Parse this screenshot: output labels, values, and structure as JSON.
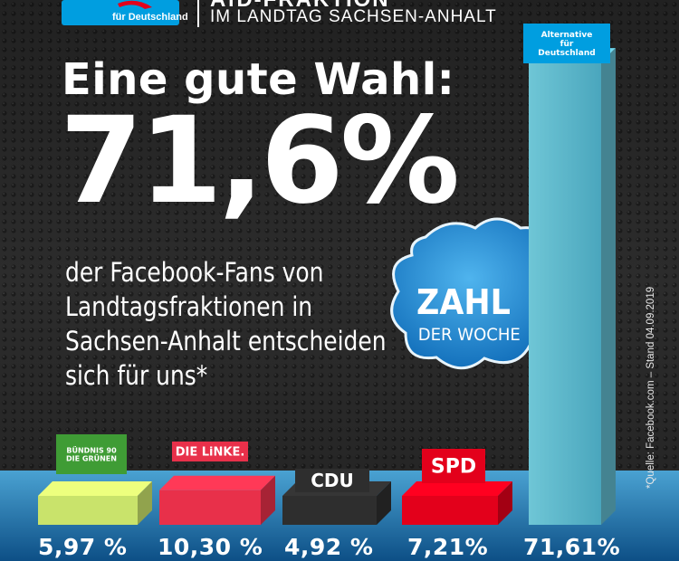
{
  "header": {
    "logo_text": "für Deutschland",
    "title": "AfD-FRAKTION",
    "subtitle": "IM LANDTAG SACHSEN-ANHALT"
  },
  "headline": "Eine gute Wahl:",
  "big_number": "71,6%",
  "body_lines": [
    "der Facebook-Fans von",
    "Landtagsfraktionen in",
    "Sachsen-Anhalt entscheiden",
    "sich für uns*"
  ],
  "badge": {
    "line1": "ZAHL",
    "line2": "DER WOCHE"
  },
  "source_note": "*Quelle: Facebook.com – Stand 04.09.2019",
  "chart_data": {
    "type": "bar",
    "title": "",
    "xlabel": "",
    "ylabel": "",
    "ylim": [
      0,
      75
    ],
    "categories": [
      "BÜNDNIS 90 DIE GRÜNEN",
      "DIE LINKE.",
      "CDU",
      "SPD",
      "Alternative für Deutschland"
    ],
    "values": [
      5.97,
      10.3,
      4.92,
      7.21,
      71.61
    ],
    "value_labels": [
      "5,97 %",
      "10,30 %",
      "4,92 %",
      "7,21%",
      "71,61%"
    ],
    "category_labels": {
      "gruene": [
        "BÜNDNIS 90",
        "DIE GRÜNEN"
      ],
      "linke": "DIE LiNKE.",
      "cdu": "CDU",
      "spd": "SPD",
      "afd": [
        "Alternative",
        "für",
        "Deutschland"
      ]
    },
    "colors": {
      "gruene": "#c9e36b",
      "linke": "#e8304a",
      "cdu": "#2e2e2e",
      "spd": "#e3001b",
      "afd": "#5fb6c9"
    }
  },
  "colors": {
    "background_dark": "#2a2a2a",
    "background_blue": "#1b6fa6",
    "afd_blue": "#009ee0",
    "afd_red": "#e3001b"
  }
}
